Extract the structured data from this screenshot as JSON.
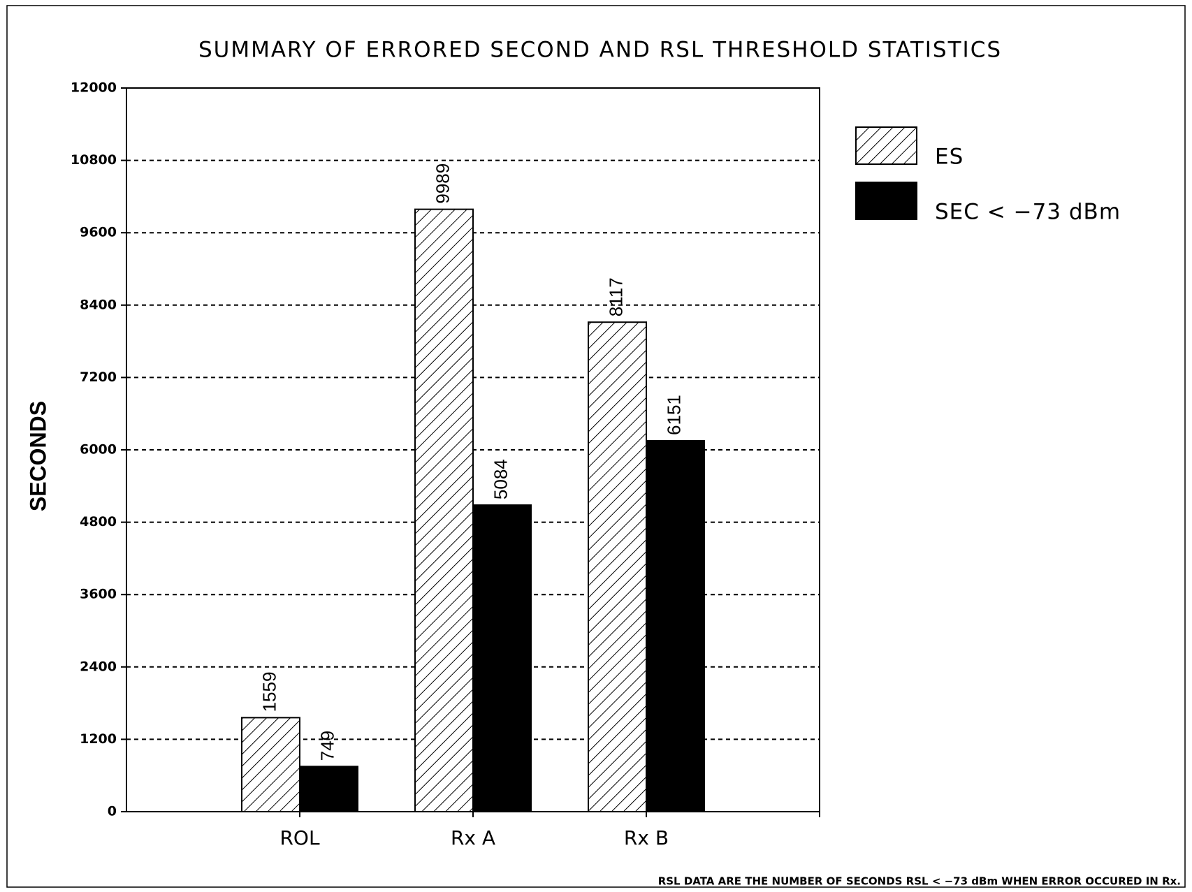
{
  "chart_data": {
    "type": "bar",
    "title": "SUMMARY OF ERRORED SECOND AND RSL THRESHOLD STATISTICS",
    "y_label": "SECONDS",
    "categories": [
      "ROL",
      "Rx A",
      "Rx B"
    ],
    "series": [
      {
        "name": "ES",
        "color": "hatch",
        "values": [
          1559,
          9989,
          8117
        ]
      },
      {
        "name": "SEC < −73 dBm",
        "color": "#000000",
        "values": [
          749,
          5084,
          6151
        ]
      }
    ],
    "ylim": [
      0,
      12000
    ],
    "yticks": [
      0,
      1200,
      2400,
      3600,
      4800,
      6000,
      7200,
      8400,
      9600,
      10800,
      12000
    ],
    "grid": true,
    "legend": "right",
    "note": "RSL DATA ARE THE NUMBER OF SECONDS RSL < −73 dBm WHEN  ERROR OCCURED IN Rx."
  }
}
